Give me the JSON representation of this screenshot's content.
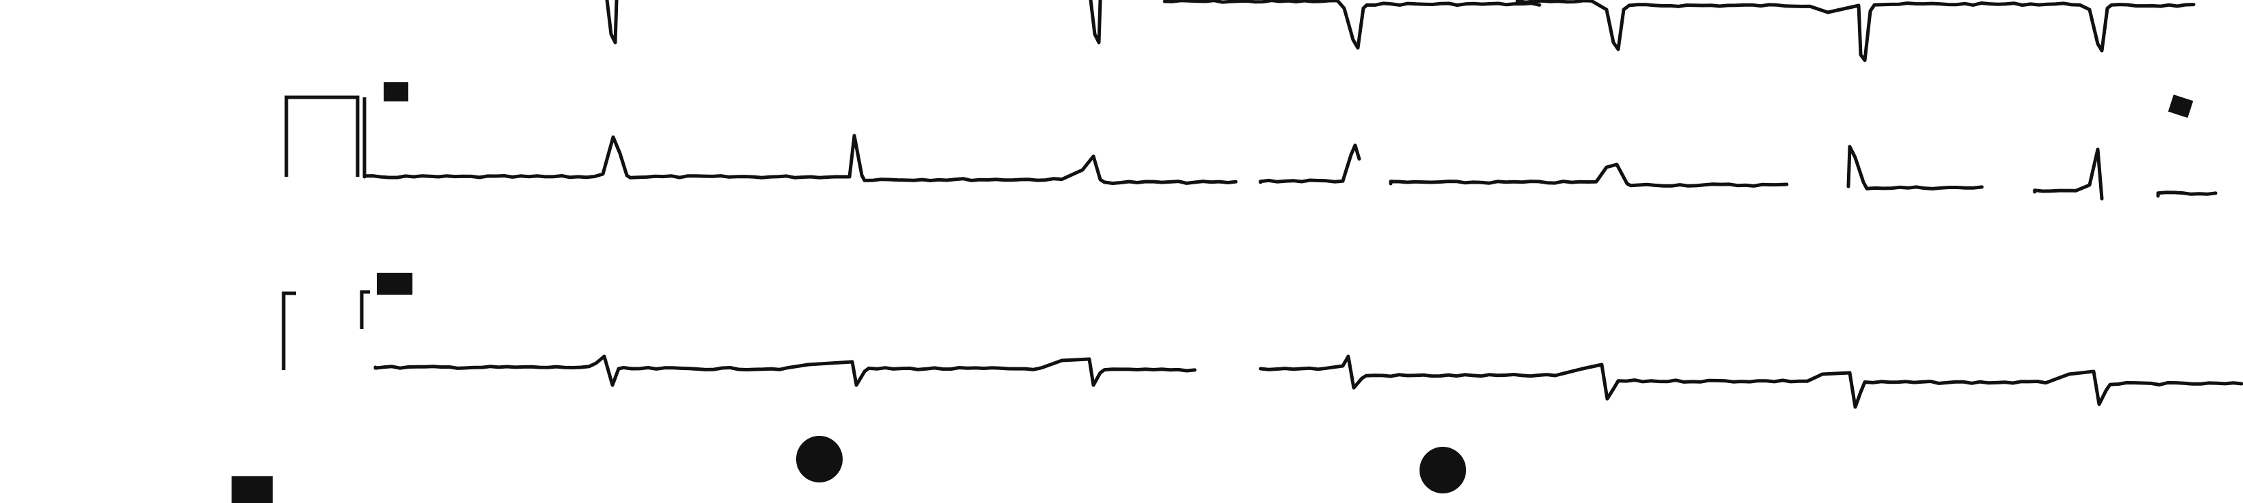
{
  "image": {
    "kind": "scanned-ecg-strip",
    "rows_visible": 3,
    "background_color": "#ffffff",
    "ink_color": "#111111"
  },
  "rows": [
    {
      "name": "row-top-partial",
      "beats_visible": 7,
      "complex_polarity": "downward",
      "has_calibration_pulse": false,
      "has_lead_label": false
    },
    {
      "name": "row-middle",
      "beats_visible": 9,
      "complex_polarity": "upward",
      "has_calibration_pulse": true,
      "has_lead_label": true
    },
    {
      "name": "row-bottom",
      "beats_visible": 9,
      "complex_polarity": "biphasic-downward",
      "has_calibration_pulse": true,
      "has_lead_label": true
    }
  ],
  "marks": {
    "round_dots": 2,
    "square_mark": 1,
    "corner_blob": 1
  }
}
